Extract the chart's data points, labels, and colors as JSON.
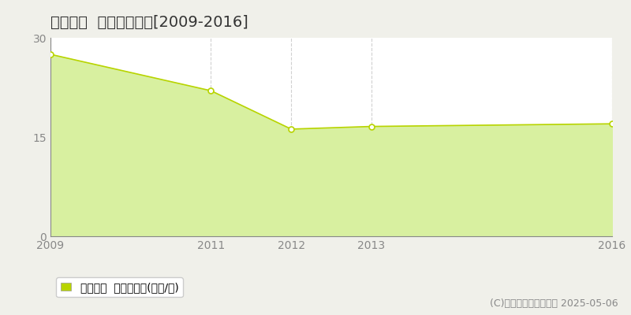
{
  "title": "鳥取市新  土地価格推移[2009-2016]",
  "years": [
    2009,
    2011,
    2012,
    2013,
    2016
  ],
  "values": [
    27.5,
    22.0,
    16.2,
    16.6,
    17.0
  ],
  "ylim": [
    0,
    30
  ],
  "yticks": [
    0,
    15,
    30
  ],
  "fill_color": "#d8f0a0",
  "line_color": "#b8d400",
  "marker_facecolor": "#ffffff",
  "marker_edgecolor": "#b8d400",
  "outer_bg_color": "#f0f0ea",
  "plot_bg_color": "#ffffff",
  "hgrid_color": "#aaaaaa",
  "vgrid_color": "#cccccc",
  "spine_color": "#888888",
  "tick_color": "#888888",
  "title_color": "#333333",
  "legend_label": "土地価格  平均坪単価(万円/坪)",
  "copyright_text": "(C)土地価格ドットコム 2025-05-06",
  "title_fontsize": 14,
  "tick_fontsize": 10,
  "legend_fontsize": 10,
  "copyright_fontsize": 9
}
